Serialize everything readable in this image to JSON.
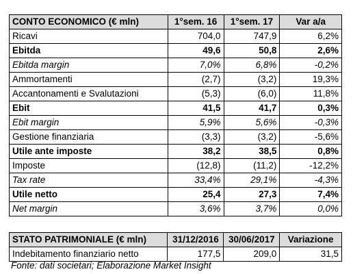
{
  "income_statement": {
    "headers": [
      "CONTO ECONOMICO (€ mln)",
      "1°sem. 16",
      "1°sem. 17",
      "Var a/a"
    ],
    "rows": [
      {
        "label": "Ricavi",
        "v16": "704,0",
        "v17": "747,9",
        "var": "6,2%",
        "style": "normal"
      },
      {
        "label": "Ebitda",
        "v16": "49,6",
        "v17": "50,8",
        "var": "2,6%",
        "style": "bold"
      },
      {
        "label": "Ebitda margin",
        "v16": "7,0%",
        "v17": "6,8%",
        "var": "-0,2%",
        "style": "italic"
      },
      {
        "label": "Ammortamenti",
        "v16": "(2,7)",
        "v17": "(3,2)",
        "var": "19,3%",
        "style": "normal"
      },
      {
        "label": "Accantonamenti e Svalutazioni",
        "v16": "(5,3)",
        "v17": "(6,0)",
        "var": "11,8%",
        "style": "normal"
      },
      {
        "label": "Ebit",
        "v16": "41,5",
        "v17": "41,7",
        "var": "0,3%",
        "style": "bold"
      },
      {
        "label": "Ebit margin",
        "v16": "5,9%",
        "v17": "5,6%",
        "var": "-0,3%",
        "style": "italic"
      },
      {
        "label": "Gestione finanziaria",
        "v16": "(3,3)",
        "v17": "(3,2)",
        "var": "-5,6%",
        "style": "normal"
      },
      {
        "label": "Utile ante imposte",
        "v16": "38,2",
        "v17": "38,5",
        "var": "0,8%",
        "style": "bold"
      },
      {
        "label": "Imposte",
        "v16": "(12,8)",
        "v17": "(11,2)",
        "var": "-12,2%",
        "style": "normal"
      },
      {
        "label": "Tax rate",
        "v16": "33,4%",
        "v17": "29,1%",
        "var": "-4,3%",
        "style": "italic"
      },
      {
        "label": "Utile netto",
        "v16": "25,4",
        "v17": "27,3",
        "var": "7,4%",
        "style": "bold"
      },
      {
        "label": "Net margin",
        "v16": "3,6%",
        "v17": "3,7%",
        "var": "0,0%",
        "style": "italic"
      }
    ]
  },
  "balance_sheet": {
    "headers": [
      "STATO PATRIMONIALE (€ mln)",
      "31/12/2016",
      "30/06/2017",
      "Variazione"
    ],
    "rows": [
      {
        "label": "Indebitamento finanziario netto",
        "v16": "177,5",
        "v17": "209,0",
        "var": "31,5",
        "style": "normal"
      }
    ]
  },
  "source": "Fonte: dati societari; Elaborazione Market Insight"
}
